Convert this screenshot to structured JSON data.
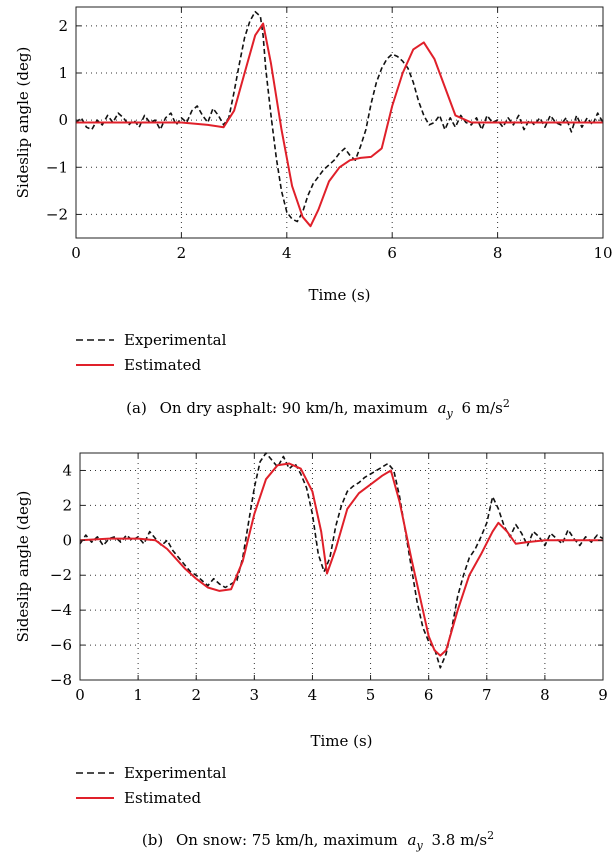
{
  "colors": {
    "experimental": "#111111",
    "estimated": "#e0202a",
    "axis": "#222222",
    "grid": "#333333"
  },
  "chart_data": [
    {
      "type": "line",
      "panel_label": "(a)",
      "caption": "On dry asphalt: 90 km/h, maximum",
      "caption_symbol": "a",
      "caption_subscript": "y",
      "caption_value": "6 m/s",
      "caption_superscript": "2",
      "xlabel": "Time (s)",
      "ylabel": "Sideslip angle (deg)",
      "xlim": [
        0,
        10
      ],
      "ylim": [
        -2.5,
        2.4
      ],
      "xticks": [
        0,
        2,
        4,
        6,
        8,
        10
      ],
      "yticks": [
        -2,
        -1,
        0,
        1,
        2
      ],
      "grid": true,
      "legend_placement": "below-left",
      "series": [
        {
          "name": "Experimental",
          "style": "dashed",
          "x": [
            0,
            0.1,
            0.2,
            0.3,
            0.4,
            0.5,
            0.6,
            0.7,
            0.8,
            0.9,
            1.0,
            1.1,
            1.2,
            1.3,
            1.4,
            1.5,
            1.6,
            1.7,
            1.8,
            1.9,
            2.0,
            2.1,
            2.2,
            2.3,
            2.4,
            2.5,
            2.6,
            2.7,
            2.8,
            2.9,
            3.0,
            3.1,
            3.2,
            3.3,
            3.4,
            3.5,
            3.55,
            3.6,
            3.7,
            3.8,
            3.9,
            4.0,
            4.1,
            4.2,
            4.3,
            4.4,
            4.5,
            4.6,
            4.7,
            4.8,
            4.9,
            5.0,
            5.1,
            5.2,
            5.3,
            5.4,
            5.5,
            5.6,
            5.7,
            5.8,
            5.9,
            6.0,
            6.1,
            6.2,
            6.3,
            6.4,
            6.5,
            6.6,
            6.7,
            6.8,
            6.9,
            7.0,
            7.1,
            7.2,
            7.3,
            7.4,
            7.5,
            7.6,
            7.7,
            7.8,
            7.9,
            8.0,
            8.1,
            8.2,
            8.3,
            8.4,
            8.5,
            8.6,
            8.7,
            8.8,
            8.9,
            9.0,
            9.1,
            9.2,
            9.3,
            9.4,
            9.5,
            9.6,
            9.7,
            9.8,
            9.9,
            10.0
          ],
          "y": [
            -0.05,
            0.05,
            -0.15,
            -0.2,
            0.0,
            -0.1,
            0.1,
            -0.05,
            0.15,
            0.05,
            -0.1,
            0.0,
            -0.15,
            0.1,
            -0.05,
            0.0,
            -0.2,
            0.05,
            0.15,
            -0.1,
            0.05,
            -0.05,
            0.2,
            0.3,
            0.1,
            -0.05,
            0.25,
            0.1,
            -0.1,
            0.05,
            0.6,
            1.2,
            1.75,
            2.1,
            2.3,
            2.2,
            1.8,
            1.1,
            0.1,
            -0.8,
            -1.5,
            -1.95,
            -2.1,
            -2.15,
            -1.95,
            -1.6,
            -1.35,
            -1.2,
            -1.05,
            -0.95,
            -0.85,
            -0.7,
            -0.6,
            -0.75,
            -0.85,
            -0.55,
            -0.2,
            0.35,
            0.8,
            1.1,
            1.3,
            1.4,
            1.35,
            1.25,
            1.1,
            0.8,
            0.4,
            0.1,
            -0.1,
            -0.05,
            0.1,
            -0.2,
            0.05,
            -0.15,
            0.1,
            -0.05,
            -0.1,
            0.05,
            -0.2,
            0.1,
            -0.05,
            0.0,
            -0.15,
            0.05,
            -0.1,
            0.1,
            -0.2,
            0.0,
            -0.1,
            0.05,
            -0.15,
            0.1,
            -0.05,
            -0.1,
            0.05,
            -0.25,
            0.1,
            -0.15,
            0.05,
            -0.1,
            0.15,
            -0.05
          ]
        },
        {
          "name": "Estimated",
          "style": "solid",
          "x": [
            0,
            0.5,
            1.0,
            1.5,
            2.0,
            2.5,
            2.8,
            3.0,
            3.2,
            3.4,
            3.55,
            3.7,
            3.9,
            4.1,
            4.3,
            4.45,
            4.6,
            4.8,
            5.0,
            5.2,
            5.4,
            5.6,
            5.8,
            6.0,
            6.2,
            6.4,
            6.6,
            6.8,
            7.0,
            7.2,
            7.5,
            8.0,
            9.0,
            10.0
          ],
          "y": [
            -0.05,
            -0.05,
            -0.05,
            -0.05,
            -0.05,
            -0.1,
            -0.15,
            0.2,
            1.0,
            1.8,
            2.05,
            1.2,
            -0.2,
            -1.4,
            -2.05,
            -2.25,
            -1.9,
            -1.3,
            -1.0,
            -0.85,
            -0.8,
            -0.78,
            -0.6,
            0.3,
            1.0,
            1.5,
            1.65,
            1.3,
            0.7,
            0.1,
            -0.05,
            -0.05,
            -0.05,
            -0.05
          ]
        }
      ]
    },
    {
      "type": "line",
      "panel_label": "(b)",
      "caption": "On snow: 75 km/h, maximum",
      "caption_symbol": "a",
      "caption_subscript": "y",
      "caption_value": "3.8 m/s",
      "caption_superscript": "2",
      "xlabel": "Time (s)",
      "ylabel": "Sideslip angle (deg)",
      "xlim": [
        0,
        9
      ],
      "ylim": [
        -8,
        5
      ],
      "xticks": [
        0,
        1,
        2,
        3,
        4,
        5,
        6,
        7,
        8,
        9
      ],
      "yticks": [
        -8,
        -6,
        -4,
        -2,
        0,
        2,
        4
      ],
      "grid": true,
      "legend_placement": "below-left",
      "series": [
        {
          "name": "Experimental",
          "style": "dashed",
          "x": [
            0,
            0.1,
            0.2,
            0.3,
            0.4,
            0.5,
            0.6,
            0.7,
            0.8,
            0.9,
            1.0,
            1.1,
            1.2,
            1.3,
            1.4,
            1.5,
            1.6,
            1.7,
            1.8,
            1.9,
            2.0,
            2.1,
            2.2,
            2.3,
            2.4,
            2.5,
            2.6,
            2.7,
            2.8,
            2.9,
            3.0,
            3.1,
            3.2,
            3.3,
            3.4,
            3.5,
            3.6,
            3.7,
            3.8,
            3.9,
            4.0,
            4.1,
            4.2,
            4.3,
            4.4,
            4.5,
            4.6,
            4.7,
            4.8,
            4.9,
            5.0,
            5.1,
            5.2,
            5.3,
            5.4,
            5.5,
            5.6,
            5.7,
            5.8,
            5.9,
            6.0,
            6.1,
            6.2,
            6.3,
            6.4,
            6.5,
            6.6,
            6.7,
            6.8,
            6.9,
            7.0,
            7.1,
            7.2,
            7.3,
            7.4,
            7.5,
            7.6,
            7.7,
            7.8,
            7.9,
            8.0,
            8.1,
            8.2,
            8.3,
            8.4,
            8.5,
            8.6,
            8.7,
            8.8,
            8.9,
            9.0
          ],
          "y": [
            -0.2,
            0.3,
            -0.1,
            0.2,
            -0.3,
            0.1,
            0.2,
            -0.1,
            0.3,
            0.0,
            0.2,
            -0.2,
            0.5,
            0.1,
            -0.3,
            0.0,
            -0.6,
            -1.0,
            -1.4,
            -1.8,
            -2.0,
            -2.3,
            -2.6,
            -2.2,
            -2.5,
            -2.7,
            -2.5,
            -2.3,
            -1.0,
            1.0,
            3.0,
            4.5,
            5.0,
            4.6,
            4.2,
            4.8,
            4.1,
            4.4,
            3.8,
            3.0,
            1.5,
            -0.8,
            -1.8,
            -1.0,
            0.8,
            2.0,
            2.8,
            3.1,
            3.3,
            3.6,
            3.8,
            4.0,
            4.2,
            4.4,
            4.0,
            2.5,
            0.5,
            -1.5,
            -3.5,
            -5.0,
            -5.8,
            -6.2,
            -7.3,
            -6.5,
            -5.0,
            -3.2,
            -2.0,
            -1.0,
            -0.5,
            0.2,
            1.0,
            2.5,
            1.8,
            0.8,
            0.2,
            0.9,
            0.4,
            -0.3,
            0.5,
            0.2,
            -0.3,
            0.4,
            0.1,
            -0.2,
            0.6,
            0.1,
            -0.3,
            0.2,
            -0.1,
            0.3,
            0.1
          ]
        },
        {
          "name": "Estimated",
          "style": "solid",
          "x": [
            0,
            0.5,
            1.0,
            1.3,
            1.5,
            1.8,
            2.0,
            2.2,
            2.4,
            2.6,
            2.8,
            3.0,
            3.2,
            3.4,
            3.6,
            3.8,
            4.0,
            4.15,
            4.25,
            4.4,
            4.6,
            4.8,
            5.0,
            5.2,
            5.35,
            5.5,
            5.7,
            5.9,
            6.0,
            6.1,
            6.2,
            6.3,
            6.5,
            6.7,
            6.9,
            7.1,
            7.2,
            7.35,
            7.5,
            7.7,
            8.0,
            8.5,
            9.0
          ],
          "y": [
            0.0,
            0.1,
            0.1,
            0.0,
            -0.5,
            -1.6,
            -2.2,
            -2.7,
            -2.9,
            -2.8,
            -1.2,
            1.5,
            3.5,
            4.3,
            4.4,
            4.1,
            2.8,
            0.5,
            -1.9,
            -0.5,
            1.8,
            2.7,
            3.2,
            3.7,
            4.0,
            2.2,
            -1.0,
            -4.0,
            -5.5,
            -6.3,
            -6.6,
            -6.3,
            -4.0,
            -2.0,
            -0.8,
            0.5,
            1.0,
            0.5,
            -0.2,
            -0.1,
            0.0,
            0.0,
            0.0
          ]
        }
      ]
    }
  ]
}
